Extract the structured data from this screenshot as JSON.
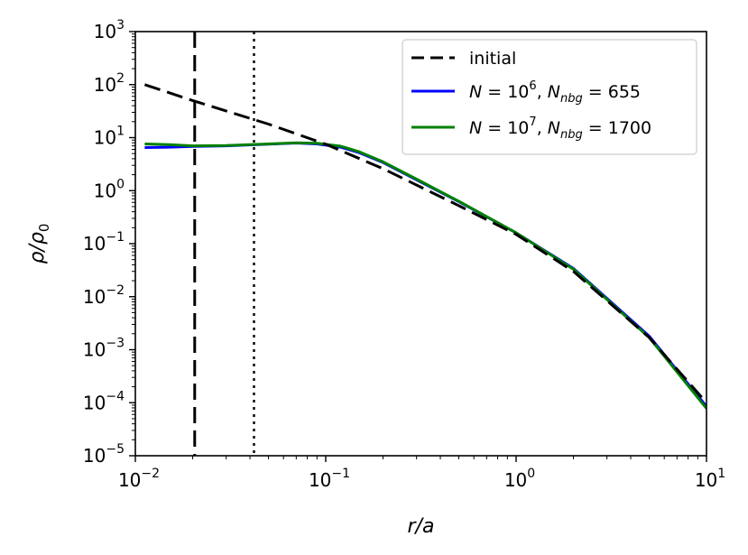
{
  "chart_data": {
    "type": "line",
    "xscale": "log",
    "yscale": "log",
    "xlim": [
      0.01,
      10
    ],
    "ylim": [
      1e-05,
      1000
    ],
    "xlabel": "r/a",
    "ylabel": "ρ/ρ0",
    "x_ticks": [
      {
        "base": "10",
        "exp": "−2",
        "value": 0.01
      },
      {
        "base": "10",
        "exp": "−1",
        "value": 0.1
      },
      {
        "base": "10",
        "exp": "0",
        "value": 1
      },
      {
        "base": "10",
        "exp": "1",
        "value": 10
      }
    ],
    "y_ticks": [
      {
        "base": "10",
        "exp": "−5",
        "value": 1e-05
      },
      {
        "base": "10",
        "exp": "−4",
        "value": 0.0001
      },
      {
        "base": "10",
        "exp": "−3",
        "value": 0.001
      },
      {
        "base": "10",
        "exp": "−2",
        "value": 0.01
      },
      {
        "base": "10",
        "exp": "−1",
        "value": 0.1
      },
      {
        "base": "10",
        "exp": "0",
        "value": 1
      },
      {
        "base": "10",
        "exp": "1",
        "value": 10
      },
      {
        "base": "10",
        "exp": "2",
        "value": 100
      },
      {
        "base": "10",
        "exp": "3",
        "value": 1000
      }
    ],
    "legend_position": "top-right",
    "series": [
      {
        "name": "initial",
        "legend": {
          "text": "initial"
        },
        "color": "#000000",
        "style": "dashed",
        "x": [
          0.0112,
          0.02,
          0.05,
          0.1,
          0.2,
          0.5,
          1,
          2,
          5,
          10
        ],
        "y": [
          100,
          50,
          18,
          7.5,
          2.6,
          0.52,
          0.15,
          0.03,
          0.0017,
          0.0001
        ]
      },
      {
        "name": "N = 10^6, N_nbg = 655",
        "legend": {
          "n_sym": "N",
          "eq": " = ",
          "base": "10",
          "exp": "6",
          "sep": ", ",
          "nb_sym": "N",
          "nb_sub": "nbg",
          "nb_eq": " = ",
          "nb_val": "655"
        },
        "color": "#0000ff",
        "style": "solid",
        "x": [
          0.0112,
          0.015,
          0.02,
          0.03,
          0.05,
          0.07,
          0.09,
          0.12,
          0.15,
          0.2,
          0.3,
          0.5,
          1,
          2,
          5,
          10
        ],
        "y": [
          6.5,
          6.6,
          6.8,
          7.0,
          7.5,
          7.9,
          7.6,
          6.6,
          5.2,
          3.4,
          1.6,
          0.62,
          0.16,
          0.034,
          0.0018,
          8.5e-05
        ]
      },
      {
        "name": "N = 10^7, N_nbg = 1700",
        "legend": {
          "n_sym": "N",
          "eq": " = ",
          "base": "10",
          "exp": "7",
          "sep": ", ",
          "nb_sym": "N",
          "nb_sub": "nbg",
          "nb_eq": " = ",
          "nb_val": "1700"
        },
        "color": "#008000",
        "style": "solid",
        "x": [
          0.0112,
          0.015,
          0.02,
          0.03,
          0.05,
          0.07,
          0.09,
          0.12,
          0.15,
          0.2,
          0.3,
          0.5,
          1,
          2,
          5,
          10
        ],
        "y": [
          7.6,
          7.4,
          7.0,
          7.1,
          7.6,
          8.0,
          7.8,
          6.9,
          5.4,
          3.5,
          1.65,
          0.63,
          0.16,
          0.033,
          0.0017,
          7.8e-05
        ]
      }
    ],
    "vertical_lines": [
      {
        "x": 0.0205,
        "style": "dashed",
        "color": "#000000"
      },
      {
        "x": 0.042,
        "style": "dotted",
        "color": "#000000"
      }
    ]
  }
}
